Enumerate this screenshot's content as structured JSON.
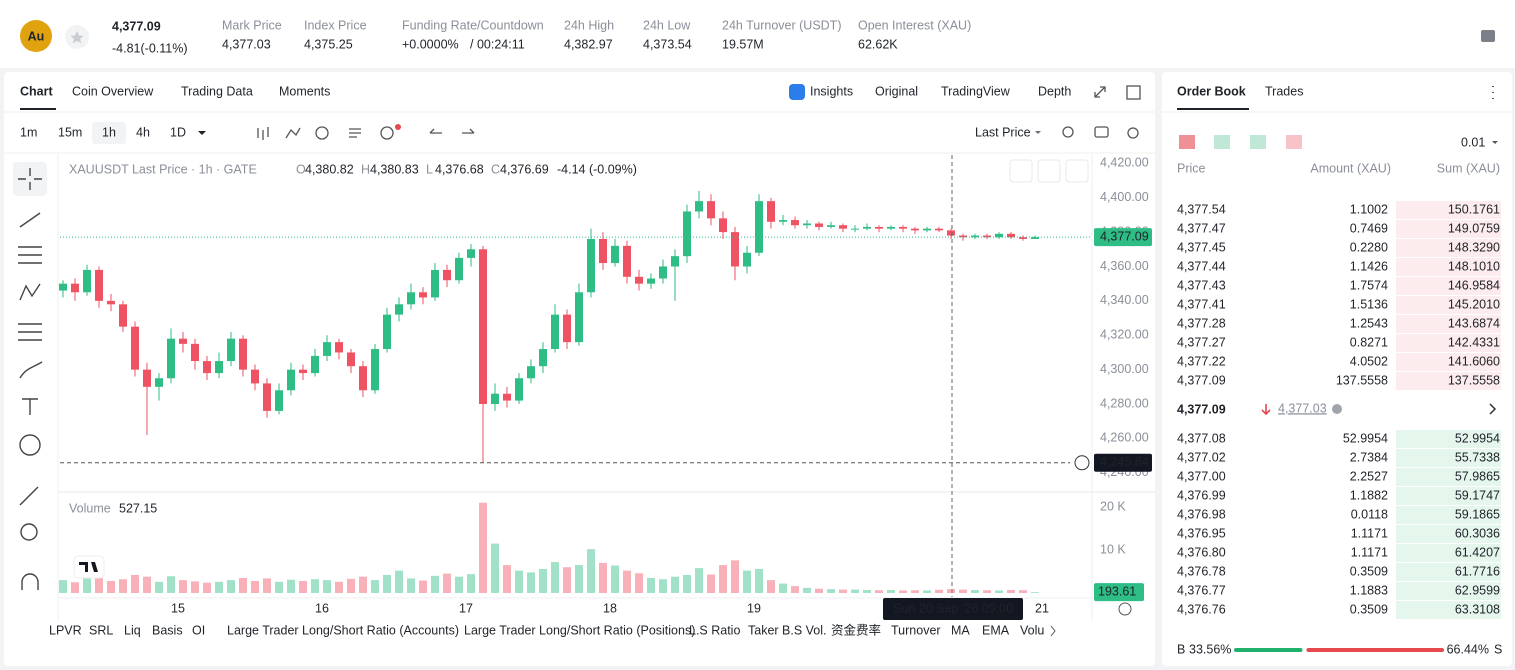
{
  "header": {
    "symbol_icon": "Au",
    "price": "4,377.09",
    "change": "-4.81(-0.11%)",
    "stats": [
      {
        "label": "Mark Price",
        "value": "4,377.03"
      },
      {
        "label": "Index Price",
        "value": "4,375.25"
      },
      {
        "label": "Funding Rate/Countdown",
        "value": "+0.0000%",
        "value2": "/ 00:24:11"
      },
      {
        "label": "24h High",
        "value": "4,382.97"
      },
      {
        "label": "24h Low",
        "value": "4,373.54"
      },
      {
        "label": "24h Turnover (USDT)",
        "value": "19.57M"
      },
      {
        "label": "Open Interest (XAU)",
        "value": "62.62K"
      }
    ]
  },
  "tabs": [
    "Chart",
    "Coin Overview",
    "Trading Data",
    "Moments"
  ],
  "view_tabs": [
    "Insights",
    "Original",
    "TradingView",
    "Depth"
  ],
  "intervals": [
    "1m",
    "15m",
    "1h",
    "4h",
    "1D"
  ],
  "price_source": "Last Price",
  "chart_data": {
    "type": "candlestick",
    "title": "XAUUSDT Last Price · 1h · GATE",
    "ohlc_labels": [
      "O",
      "H",
      "L",
      "C"
    ],
    "ohlc_values": [
      "4,380.82",
      "4,380.83",
      "4,376.68",
      "4,376.69"
    ],
    "ohlc_change": "-4.14 (-0.09%)",
    "up_color": "#2ebd85",
    "down_color": "#ef5363",
    "grid": false,
    "ylim": [
      4230,
      4426
    ],
    "yticks": [
      {
        "value": 4240,
        "label": "4,240.00"
      },
      {
        "value": 4260,
        "label": "4,260.00"
      },
      {
        "value": 4280,
        "label": "4,280.00"
      },
      {
        "value": 4300,
        "label": "4,300.00"
      },
      {
        "value": 4320,
        "label": "4,320.00"
      },
      {
        "value": 4340,
        "label": "4,340.00"
      },
      {
        "value": 4360,
        "label": "4,360.00"
      },
      {
        "value": 4380,
        "label": "4,380.00"
      },
      {
        "value": 4400,
        "label": "4,400.00"
      },
      {
        "value": 4420,
        "label": "4,420.00"
      }
    ],
    "candles": [
      [
        4346,
        4352,
        4342,
        4350
      ],
      [
        4350,
        4353,
        4340,
        4345
      ],
      [
        4345,
        4361,
        4343,
        4358
      ],
      [
        4358,
        4360,
        4336,
        4340
      ],
      [
        4340,
        4344,
        4334,
        4338
      ],
      [
        4338,
        4340,
        4322,
        4325
      ],
      [
        4325,
        4328,
        4296,
        4300
      ],
      [
        4300,
        4304,
        4262,
        4290
      ],
      [
        4290,
        4298,
        4282,
        4295
      ],
      [
        4295,
        4324,
        4292,
        4318
      ],
      [
        4318,
        4322,
        4310,
        4315
      ],
      [
        4315,
        4318,
        4300,
        4305
      ],
      [
        4305,
        4308,
        4294,
        4298
      ],
      [
        4298,
        4310,
        4295,
        4305
      ],
      [
        4305,
        4322,
        4302,
        4318
      ],
      [
        4318,
        4320,
        4296,
        4300
      ],
      [
        4300,
        4303,
        4288,
        4292
      ],
      [
        4292,
        4295,
        4272,
        4276
      ],
      [
        4276,
        4292,
        4274,
        4288
      ],
      [
        4288,
        4304,
        4285,
        4300
      ],
      [
        4300,
        4303,
        4294,
        4298
      ],
      [
        4298,
        4312,
        4296,
        4308
      ],
      [
        4308,
        4320,
        4305,
        4316
      ],
      [
        4316,
        4318,
        4306,
        4310
      ],
      [
        4310,
        4312,
        4298,
        4302
      ],
      [
        4302,
        4305,
        4284,
        4288
      ],
      [
        4288,
        4315,
        4286,
        4312
      ],
      [
        4312,
        4336,
        4310,
        4332
      ],
      [
        4332,
        4342,
        4328,
        4338
      ],
      [
        4338,
        4350,
        4335,
        4345
      ],
      [
        4345,
        4348,
        4338,
        4342
      ],
      [
        4342,
        4362,
        4340,
        4358
      ],
      [
        4358,
        4361,
        4348,
        4352
      ],
      [
        4352,
        4368,
        4350,
        4365
      ],
      [
        4365,
        4373,
        4360,
        4370
      ],
      [
        4370,
        4372,
        4245.84,
        4280
      ],
      [
        4280,
        4292,
        4276,
        4286
      ],
      [
        4286,
        4290,
        4278,
        4282
      ],
      [
        4282,
        4298,
        4280,
        4295
      ],
      [
        4295,
        4306,
        4292,
        4302
      ],
      [
        4302,
        4316,
        4298,
        4312
      ],
      [
        4312,
        4338,
        4310,
        4332
      ],
      [
        4332,
        4335,
        4312,
        4316
      ],
      [
        4316,
        4350,
        4314,
        4345
      ],
      [
        4345,
        4382,
        4342,
        4376
      ],
      [
        4376,
        4380,
        4358,
        4362
      ],
      [
        4362,
        4376,
        4360,
        4372
      ],
      [
        4372,
        4375,
        4350,
        4354
      ],
      [
        4354,
        4358,
        4346,
        4350
      ],
      [
        4350,
        4356,
        4347,
        4353
      ],
      [
        4353,
        4364,
        4350,
        4360
      ],
      [
        4360,
        4370,
        4340,
        4366
      ],
      [
        4366,
        4396,
        4362,
        4392
      ],
      [
        4392,
        4404,
        4388,
        4398
      ],
      [
        4398,
        4402,
        4384,
        4388
      ],
      [
        4388,
        4392,
        4376,
        4380
      ],
      [
        4380,
        4383,
        4352,
        4360
      ],
      [
        4360,
        4372,
        4356,
        4368
      ],
      [
        4368,
        4402,
        4366,
        4398
      ],
      [
        4398,
        4400,
        4382,
        4386
      ],
      [
        4386,
        4390,
        4384,
        4387
      ],
      [
        4387,
        4389,
        4382,
        4384
      ],
      [
        4384,
        4387,
        4382,
        4385
      ],
      [
        4385,
        4386,
        4381,
        4383
      ],
      [
        4383,
        4386,
        4382,
        4384
      ],
      [
        4384,
        4385,
        4380,
        4382
      ],
      [
        4382,
        4384,
        4380,
        4382
      ],
      [
        4382,
        4385,
        4381,
        4383
      ],
      [
        4383,
        4384,
        4380,
        4382
      ],
      [
        4382,
        4384,
        4381,
        4383
      ],
      [
        4383,
        4384,
        4380,
        4382
      ],
      [
        4382,
        4383,
        4379,
        4381
      ],
      [
        4381,
        4383,
        4380,
        4382
      ],
      [
        4382,
        4383,
        4380,
        4381
      ],
      [
        4381,
        4382,
        4376,
        4378
      ],
      [
        4378,
        4379,
        4375,
        4377
      ],
      [
        4377,
        4379,
        4376,
        4378
      ],
      [
        4378,
        4379,
        4376,
        4377
      ],
      [
        4377,
        4380,
        4376,
        4379
      ],
      [
        4379,
        4380,
        4376,
        4377
      ],
      [
        4377,
        4378,
        4375,
        4376
      ],
      [
        4376,
        4378,
        4376,
        4377.09
      ]
    ],
    "last_price": {
      "value": 4377.09,
      "label": "4,377.09"
    },
    "low_marker": {
      "value": 4245.84,
      "label": "4,245.84"
    },
    "x_labels": [
      "15",
      "16",
      "17",
      "18",
      "19",
      "21"
    ],
    "crosshair_label": "Sun 20 Sep '26  09:00",
    "volume": {
      "title": "Volume",
      "current": "527.15",
      "ylim": [
        0,
        22800
      ],
      "yticks": [
        {
          "value": 10000,
          "label": "10 K"
        },
        {
          "value": 20000,
          "label": "20 K"
        }
      ],
      "values": [
        3000,
        2500,
        4500,
        3500,
        2800,
        3200,
        4200,
        3800,
        2600,
        3900,
        3000,
        2700,
        2400,
        2600,
        3000,
        3500,
        2800,
        3400,
        2600,
        3100,
        2800,
        3200,
        3000,
        2600,
        3300,
        3800,
        3000,
        4200,
        5200,
        3400,
        2900,
        4000,
        4500,
        3800,
        4400,
        21000,
        11500,
        6500,
        5200,
        4800,
        5600,
        7200,
        6000,
        6500,
        10200,
        7000,
        6400,
        5200,
        4600,
        3500,
        3200,
        3800,
        4200,
        5800,
        4300,
        6500,
        7600,
        5200,
        5600,
        3000,
        2200,
        1600,
        1200,
        1000,
        900,
        800,
        800,
        700,
        650,
        700,
        600,
        650,
        600,
        750,
        900,
        800,
        700,
        650,
        600,
        700,
        650,
        193.61
      ],
      "last": {
        "value": 193.61,
        "label": "193.61"
      }
    }
  },
  "indicators": [
    "LPVR",
    "SRL",
    "Liq",
    "Basis",
    "OI",
    "Large Trader Long/Short Ratio (Accounts)",
    "Large Trader Long/Short Ratio (Positions)",
    "L.S Ratio",
    "Taker B.S Vol.",
    "资金费率",
    "Turnover",
    "MA",
    "EMA",
    "Volu"
  ],
  "order_book": {
    "tabs": [
      "Order Book",
      "Trades"
    ],
    "tick_size": "0.01",
    "columns": [
      "Price",
      "Amount (XAU)",
      "Sum (XAU)"
    ],
    "asks": [
      [
        "4,377.54",
        "1.1002",
        "150.1761"
      ],
      [
        "4,377.47",
        "0.7469",
        "149.0759"
      ],
      [
        "4,377.45",
        "0.2280",
        "148.3290"
      ],
      [
        "4,377.44",
        "1.1426",
        "148.1010"
      ],
      [
        "4,377.43",
        "1.7574",
        "146.9584"
      ],
      [
        "4,377.41",
        "1.5136",
        "145.2010"
      ],
      [
        "4,377.28",
        "1.2543",
        "143.6874"
      ],
      [
        "4,377.27",
        "0.8271",
        "142.4331"
      ],
      [
        "4,377.22",
        "4.0502",
        "141.6060"
      ],
      [
        "4,377.09",
        "137.5558",
        "137.5558"
      ]
    ],
    "mid_price": "4,377.09",
    "mark_price": "4,377.03",
    "bids": [
      [
        "4,377.08",
        "52.9954",
        "52.9954"
      ],
      [
        "4,377.02",
        "2.7384",
        "55.7338"
      ],
      [
        "4,377.00",
        "2.2527",
        "57.9865"
      ],
      [
        "4,376.99",
        "1.1882",
        "59.1747"
      ],
      [
        "4,376.98",
        "0.0118",
        "59.1865"
      ],
      [
        "4,376.95",
        "1.1171",
        "60.3036"
      ],
      [
        "4,376.80",
        "1.1171",
        "61.4207"
      ],
      [
        "4,376.78",
        "0.3509",
        "61.7716"
      ],
      [
        "4,376.77",
        "1.1883",
        "62.9599"
      ],
      [
        "4,376.76",
        "0.3509",
        "63.3108"
      ]
    ],
    "buy_letter": "B",
    "buy_ratio": 33.56,
    "buy_ratio_label": "33.56%",
    "sell_ratio": 66.44,
    "sell_ratio_label": "66.44%",
    "sell_letter": "S"
  }
}
